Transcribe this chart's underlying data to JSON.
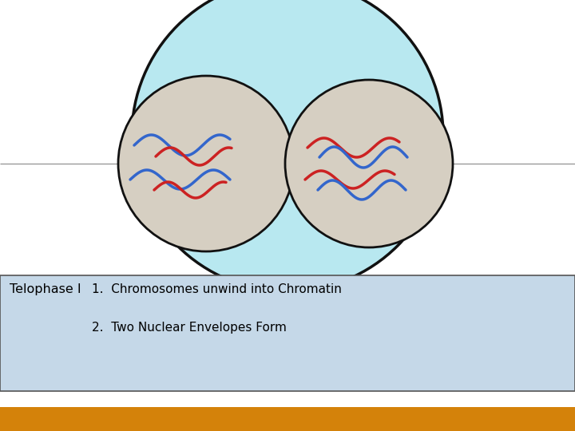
{
  "bg_color": "#ffffff",
  "cell_color": "#b8e8f0",
  "cell_border_color": "#111111",
  "nucleus_color": "#d6cfc2",
  "nucleus_border_color": "#111111",
  "spindle_color": "#888888",
  "blue_chrom_color": "#3366cc",
  "red_chrom_color": "#cc2222",
  "info_box_color": "#c5d8e8",
  "info_box_border": "#555555",
  "orange_bar_color_top": "#d4820a",
  "orange_bar_color_bot": "#a84a00",
  "title": "Telophase I",
  "point1": "1.  Chromosomes unwind into Chromatin",
  "point2": "2.  Two Nuclear Envelopes Form",
  "font_size_title": 11.5,
  "font_size_points": 11
}
